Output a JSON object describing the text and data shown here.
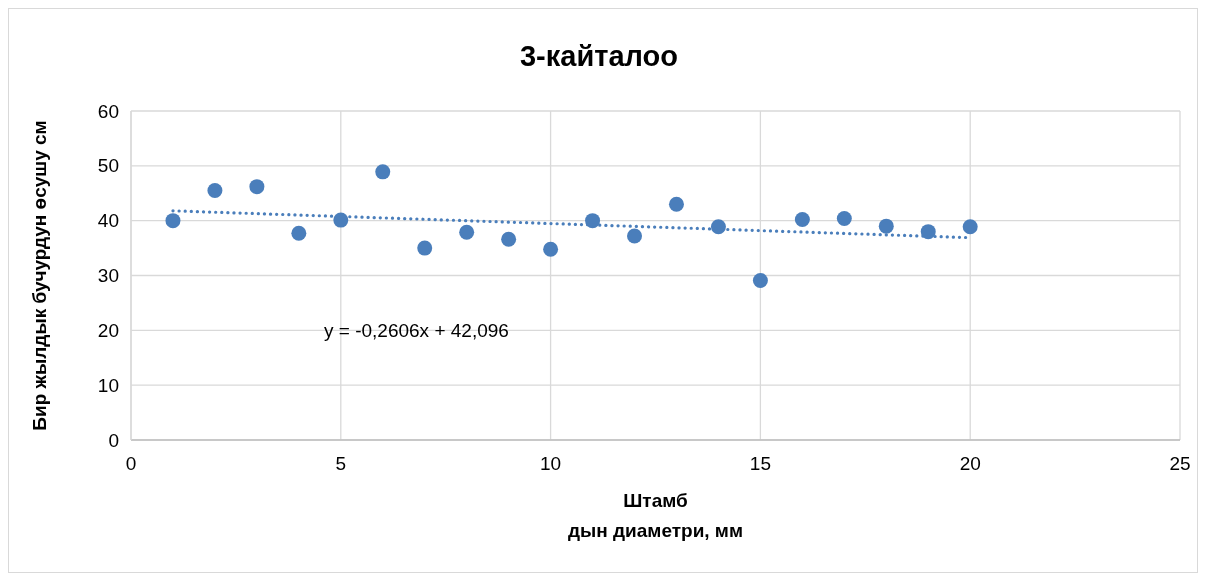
{
  "chart_data": {
    "type": "scatter",
    "title": "3-кайталоо",
    "xlabel": "Штамб\nдын диаметри, мм",
    "ylabel": "Бир жылдык бучурдун өсушу см",
    "annotations": [
      "y = -0,2606x + 42,096"
    ],
    "xlim": [
      0,
      25
    ],
    "xticks": [
      0,
      5,
      10,
      15,
      20,
      25
    ],
    "ylim": [
      0,
      60
    ],
    "yticks": [
      0,
      10,
      20,
      30,
      40,
      50,
      60
    ],
    "grid": true,
    "series": [
      {
        "color": "#4a7ebb",
        "marker": "circle",
        "x": [
          1,
          2,
          3,
          4,
          5,
          6,
          7,
          8,
          9,
          10,
          11,
          12,
          13,
          14,
          15,
          16,
          17,
          18,
          19,
          20
        ],
        "values": [
          40.0,
          45.5,
          46.2,
          37.7,
          40.1,
          48.9,
          35.0,
          37.9,
          36.6,
          34.8,
          40.0,
          37.2,
          43.0,
          38.9,
          29.1,
          40.2,
          40.4,
          39.0,
          38.0,
          38.9
        ]
      },
      {
        "type": "line",
        "color": "#4a7ebb",
        "line_style": "dotted",
        "marker": "none",
        "x": [
          1,
          20
        ],
        "values": [
          41.8,
          36.9
        ]
      }
    ]
  }
}
